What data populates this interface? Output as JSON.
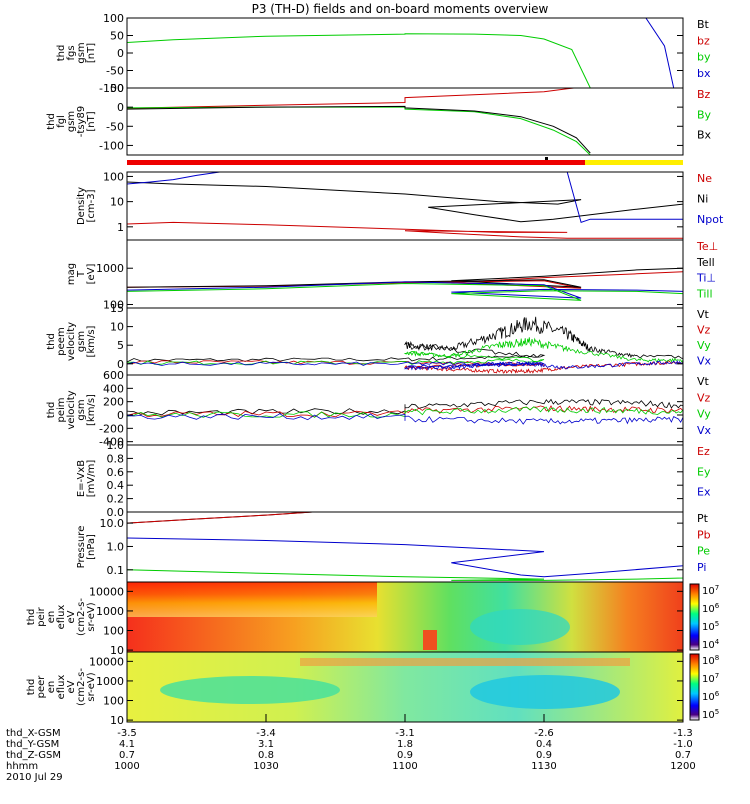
{
  "title": "P3 (TH-D) fields and on-board moments overview",
  "date_label": "2010 Jul 29",
  "chart_data": [
    {
      "type": "line",
      "id": "fgs",
      "ylabel": [
        "thd",
        "fgs",
        "gsm",
        "[nT]"
      ],
      "ylim": [
        -100,
        100
      ],
      "yticks": [
        "100",
        "50",
        "0",
        "-50",
        "-100"
      ],
      "yvals": [
        100,
        50,
        0,
        -50,
        -100
      ],
      "series": [
        {
          "name": "Bt",
          "color": "#000000"
        },
        {
          "name": "bz",
          "color": "#cc0000"
        },
        {
          "name": "by",
          "color": "#00cc00",
          "x": [
            1000,
            1010,
            1030,
            1060,
            1100,
            1115,
            1125,
            1130,
            1136,
            1140
          ],
          "y": [
            30,
            38,
            48,
            54,
            55,
            54,
            50,
            40,
            10,
            -100
          ]
        },
        {
          "name": "bx",
          "color": "#0000cc",
          "x": [
            1152,
            1156,
            1158,
            1160,
            1162
          ],
          "y": [
            100,
            20,
            -100,
            -100,
            100
          ]
        }
      ]
    },
    {
      "type": "line",
      "id": "fgl",
      "ylabel": [
        "thd",
        "fgl",
        "gsm",
        "-tsy89",
        "[nT]"
      ],
      "ylim": [
        -125,
        50
      ],
      "yticks": [
        "50",
        "0",
        "-50",
        "-100"
      ],
      "yvals": [
        50,
        0,
        -50,
        -100
      ],
      "series": [
        {
          "name": "Bz",
          "color": "#cc0000",
          "x": [
            1000,
            1030,
            1060,
            1100,
            1120,
            1130,
            1135,
            1140,
            1145
          ],
          "y": [
            -3,
            5,
            12,
            25,
            35,
            40,
            48,
            55,
            60
          ]
        },
        {
          "name": "By",
          "color": "#00cc00",
          "x": [
            1000,
            1030,
            1060,
            1100,
            1115,
            1125,
            1132,
            1137,
            1140
          ],
          "y": [
            -2,
            0,
            0,
            -5,
            -12,
            -30,
            -60,
            -90,
            -125
          ]
        },
        {
          "name": "Bx",
          "color": "#000000",
          "x": [
            1000,
            1030,
            1060,
            1100,
            1115,
            1125,
            1132,
            1137,
            1140
          ],
          "y": [
            -5,
            0,
            2,
            -2,
            -10,
            -25,
            -50,
            -80,
            -120
          ]
        },
        {
          "name": "",
          "color": "#cc0000",
          "x": [
            1163,
            1170,
            1180,
            1190,
            1200
          ],
          "y": [
            35,
            50,
            40,
            35,
            30
          ]
        },
        {
          "name": "",
          "color": "#00cc00",
          "x": [
            1163,
            1170,
            1180,
            1190,
            1200
          ],
          "y": [
            -20,
            10,
            20,
            30,
            35
          ]
        },
        {
          "name": "",
          "color": "#000000",
          "x": [
            1163,
            1170,
            1180,
            1190,
            1200
          ],
          "y": [
            -30,
            -5,
            0,
            10,
            5
          ]
        }
      ]
    },
    {
      "type": "line",
      "id": "density",
      "ylabel": [
        "Density",
        "[cm-3]"
      ],
      "yscale": "log",
      "ylim": [
        0.3,
        150
      ],
      "yticks": [
        "100",
        "10",
        "1"
      ],
      "yvals": [
        100,
        10,
        1
      ],
      "series": [
        {
          "name": "Ne",
          "color": "#cc0000",
          "x": [
            1000,
            1010,
            1030,
            1060,
            1080,
            1095,
            1100,
            1110,
            1125,
            1135,
            1145,
            1160,
            1180,
            1200
          ],
          "y": [
            1.3,
            1.5,
            1.2,
            0.8,
            0.6,
            0.6,
            0.7,
            0.55,
            0.4,
            0.35,
            0.35,
            0.35,
            0.5,
            1.0
          ]
        },
        {
          "name": "Ni",
          "color": "#000000",
          "x": [
            1000,
            1010,
            1030,
            1060,
            1080,
            1093,
            1098,
            1105,
            1115,
            1125,
            1132,
            1140,
            1150,
            1165,
            1180,
            1200
          ],
          "y": [
            60,
            50,
            40,
            20,
            10,
            8,
            12,
            6,
            3,
            1.6,
            2,
            3,
            5,
            10,
            20,
            40
          ]
        },
        {
          "name": "Npot",
          "color": "#0000cc",
          "x": [
            1000,
            1005,
            1010,
            1015,
            1020,
            1135,
            1138,
            1140,
            1160,
            1165,
            1170
          ],
          "y": [
            50,
            60,
            75,
            110,
            150,
            150,
            1.5,
            2,
            2,
            20,
            150
          ]
        }
      ]
    },
    {
      "type": "line",
      "id": "mom_t",
      "ylabel": [
        "mag",
        "T",
        "[eV]"
      ],
      "yscale": "log",
      "ylim": [
        80,
        6000
      ],
      "yticks": [
        "1000",
        "100"
      ],
      "yvals": [
        1000,
        100
      ],
      "series": [
        {
          "name": "Te⊥",
          "color": "#cc0000",
          "x": [
            1000,
            1030,
            1060,
            1090,
            1098,
            1110,
            1130,
            1150,
            1160,
            1180,
            1200
          ],
          "y": [
            300,
            320,
            400,
            450,
            280,
            400,
            550,
            700,
            800,
            600,
            500
          ]
        },
        {
          "name": "Tell",
          "color": "#000000",
          "x": [
            1000,
            1030,
            1060,
            1090,
            1098,
            1110,
            1130,
            1150,
            1160,
            1180,
            1200
          ],
          "y": [
            300,
            330,
            420,
            480,
            300,
            450,
            600,
            900,
            1000,
            700,
            550
          ]
        },
        {
          "name": "Ti⊥",
          "color": "#0000cc",
          "x": [
            1000,
            1030,
            1060,
            1090,
            1098,
            1110,
            1130,
            1150,
            1160,
            1180,
            1200
          ],
          "y": [
            250,
            300,
            420,
            350,
            150,
            220,
            260,
            250,
            230,
            220,
            230
          ]
        },
        {
          "name": "Till",
          "color": "#00cc00",
          "x": [
            1000,
            1030,
            1060,
            1090,
            1098,
            1110,
            1130,
            1150,
            1160,
            1180,
            1200
          ],
          "y": [
            230,
            270,
            380,
            330,
            130,
            200,
            240,
            230,
            200,
            190,
            200
          ]
        }
      ]
    },
    {
      "type": "line",
      "id": "velocity_e",
      "ylabel": [
        "thd",
        "peem",
        "velocity",
        "gsm",
        "[km/s]"
      ],
      "ylim": [
        -3,
        15
      ],
      "yticks": [
        "15",
        "10",
        "5",
        "0"
      ],
      "yvals": [
        15,
        10,
        5,
        0
      ],
      "series": [
        {
          "name": "Vt",
          "color": "#000000",
          "x": [
            1000,
            1060,
            1090,
            1100,
            1110,
            1120,
            1127,
            1135,
            1140,
            1150,
            1180,
            1200
          ],
          "y": [
            1,
            1.2,
            2,
            5,
            4,
            8,
            11,
            8,
            4,
            2,
            1.5,
            2.5
          ]
        },
        {
          "name": "Vz",
          "color": "#cc0000",
          "x": [
            1000,
            1060,
            1090,
            1100,
            1110,
            1120,
            1127,
            1135,
            1150,
            1200
          ],
          "y": [
            0.5,
            0.3,
            0,
            -1,
            -1.5,
            -2,
            -2,
            -1,
            0,
            0.5
          ]
        },
        {
          "name": "Vy",
          "color": "#00cc00",
          "x": [
            1000,
            1060,
            1090,
            1100,
            1110,
            1120,
            1127,
            1135,
            1150,
            1200
          ],
          "y": [
            0.3,
            0.3,
            1,
            3,
            2,
            5,
            6,
            4,
            1,
            1
          ]
        },
        {
          "name": "Vx",
          "color": "#0000cc",
          "x": [
            1000,
            1060,
            1090,
            1100,
            1110,
            1120,
            1127,
            1135,
            1150,
            1200
          ],
          "y": [
            0,
            0,
            0,
            -1,
            -1,
            0,
            0,
            -1,
            0,
            0.5
          ]
        }
      ]
    },
    {
      "type": "line",
      "id": "velocity_i",
      "ylabel": [
        "thd",
        "peim",
        "velocity",
        "gsm",
        "[km/s]"
      ],
      "ylim": [
        -450,
        600
      ],
      "yticks": [
        "600",
        "400",
        "200",
        "0",
        "-200",
        "-400"
      ],
      "yvals": [
        600,
        400,
        200,
        0,
        -200,
        -400
      ],
      "series": [
        {
          "name": "Vt",
          "color": "#000000",
          "x": [
            1000,
            1060,
            1100,
            1130,
            1150,
            1170,
            1200
          ],
          "y": [
            30,
            60,
            120,
            200,
            180,
            100,
            50
          ]
        },
        {
          "name": "Vz",
          "color": "#cc0000",
          "x": [
            1000,
            1060,
            1100,
            1130,
            1150,
            1170,
            1200
          ],
          "y": [
            10,
            20,
            60,
            100,
            80,
            60,
            20
          ]
        },
        {
          "name": "Vy",
          "color": "#00cc00",
          "x": [
            1000,
            1060,
            1100,
            1130,
            1150,
            1170,
            1200
          ],
          "y": [
            0,
            10,
            40,
            80,
            60,
            20,
            -20
          ]
        },
        {
          "name": "Vx",
          "color": "#0000cc",
          "x": [
            1000,
            1060,
            1100,
            1130,
            1150,
            1170,
            1200
          ],
          "y": [
            -20,
            -30,
            -60,
            -100,
            -80,
            -50,
            -200
          ]
        }
      ]
    },
    {
      "type": "line",
      "id": "efield",
      "ylabel": [
        "E=-VxB",
        "[mV/m]"
      ],
      "ylim": [
        0,
        1
      ],
      "yticks": [
        "1.0",
        "0.8",
        "0.6",
        "0.4",
        "0.2",
        "0.0"
      ],
      "yvals": [
        1.0,
        0.8,
        0.6,
        0.4,
        0.2,
        0.0
      ],
      "series": [
        {
          "name": "Ez",
          "color": "#cc0000"
        },
        {
          "name": "Ey",
          "color": "#00cc00"
        },
        {
          "name": "Ex",
          "color": "#0000cc"
        }
      ]
    },
    {
      "type": "line",
      "id": "pressure",
      "ylabel": [
        "Pressure",
        "[nPa]"
      ],
      "yscale": "log",
      "ylim": [
        0.03,
        30
      ],
      "yticks": [
        "10.0",
        "1.0",
        "0.1"
      ],
      "yvals": [
        10,
        1,
        0.1
      ],
      "series": [
        {
          "name": "Pt",
          "color": "#000000",
          "x": [
            1000,
            1015,
            1030,
            1040
          ],
          "y": [
            10,
            15,
            22,
            30
          ]
        },
        {
          "name": "Pb",
          "color": "#cc0000",
          "x": [
            1000,
            1015,
            1030,
            1040
          ],
          "y": [
            10,
            15,
            22,
            30
          ]
        },
        {
          "name": "Pe",
          "color": "#00cc00",
          "x": [
            1000,
            1030,
            1060,
            1090,
            1110,
            1130,
            1150,
            1170,
            1200
          ],
          "y": [
            0.1,
            0.07,
            0.05,
            0.04,
            0.035,
            0.035,
            0.04,
            0.05,
            0.08
          ]
        },
        {
          "name": "Pi",
          "color": "#0000cc",
          "x": [
            1000,
            1030,
            1060,
            1090,
            1110,
            1125,
            1130,
            1140,
            1160,
            1180,
            1200
          ],
          "y": [
            2.3,
            1.8,
            1.2,
            0.6,
            0.2,
            0.06,
            0.05,
            0.07,
            0.15,
            0.4,
            1.5
          ]
        }
      ]
    },
    {
      "type": "heatmap",
      "id": "peir",
      "ylabel": [
        "thd",
        "peir",
        "en",
        "eflux",
        "eV",
        "(cm2-s-",
        "sr-eV)"
      ],
      "yscale": "log",
      "ylim": [
        8,
        30000
      ],
      "yticks": [
        "10000",
        "1000",
        "100",
        "10"
      ],
      "yvals": [
        10000,
        1000,
        100,
        10
      ],
      "colorbar": {
        "ticks": [
          "10",
          "10",
          "10",
          "10"
        ],
        "exponents": [
          "7",
          "6",
          "5",
          "4"
        ]
      }
    },
    {
      "type": "heatmap",
      "id": "peer",
      "ylabel": [
        "thd",
        "peer",
        "en",
        "eflux",
        "eV",
        "(cm2-s-",
        "sr-eV)"
      ],
      "yscale": "log",
      "ylim": [
        8,
        30000
      ],
      "yticks": [
        "10000",
        "1000",
        "100",
        "10"
      ],
      "yvals": [
        10000,
        1000,
        100,
        10
      ],
      "colorbar": {
        "ticks": [
          "10",
          "10",
          "10",
          "10"
        ],
        "exponents": [
          "8",
          "7",
          "6",
          "5"
        ]
      }
    }
  ],
  "time_axis": {
    "xlim": [
      1000,
      1200
    ],
    "ticks": [
      1000,
      1030,
      1100,
      1130,
      1200
    ],
    "rows": [
      {
        "label": "thd_X-GSM",
        "values": [
          "-3.5",
          "-3.4",
          "-3.1",
          "-2.6",
          "-1.3"
        ]
      },
      {
        "label": "thd_Y-GSM",
        "values": [
          "4.1",
          "3.1",
          "1.8",
          "0.4",
          "-1.0"
        ]
      },
      {
        "label": "thd_Z-GSM",
        "values": [
          "0.7",
          "0.8",
          "0.9",
          "0.9",
          "0.7"
        ]
      },
      {
        "label": "hhmm",
        "values": [
          "1000",
          "1030",
          "1100",
          "1130",
          "1200"
        ]
      }
    ]
  },
  "colors": {
    "red": "#cc0000",
    "green": "#00cc00",
    "blue": "#0000cc",
    "yellow": "#ffee00"
  }
}
